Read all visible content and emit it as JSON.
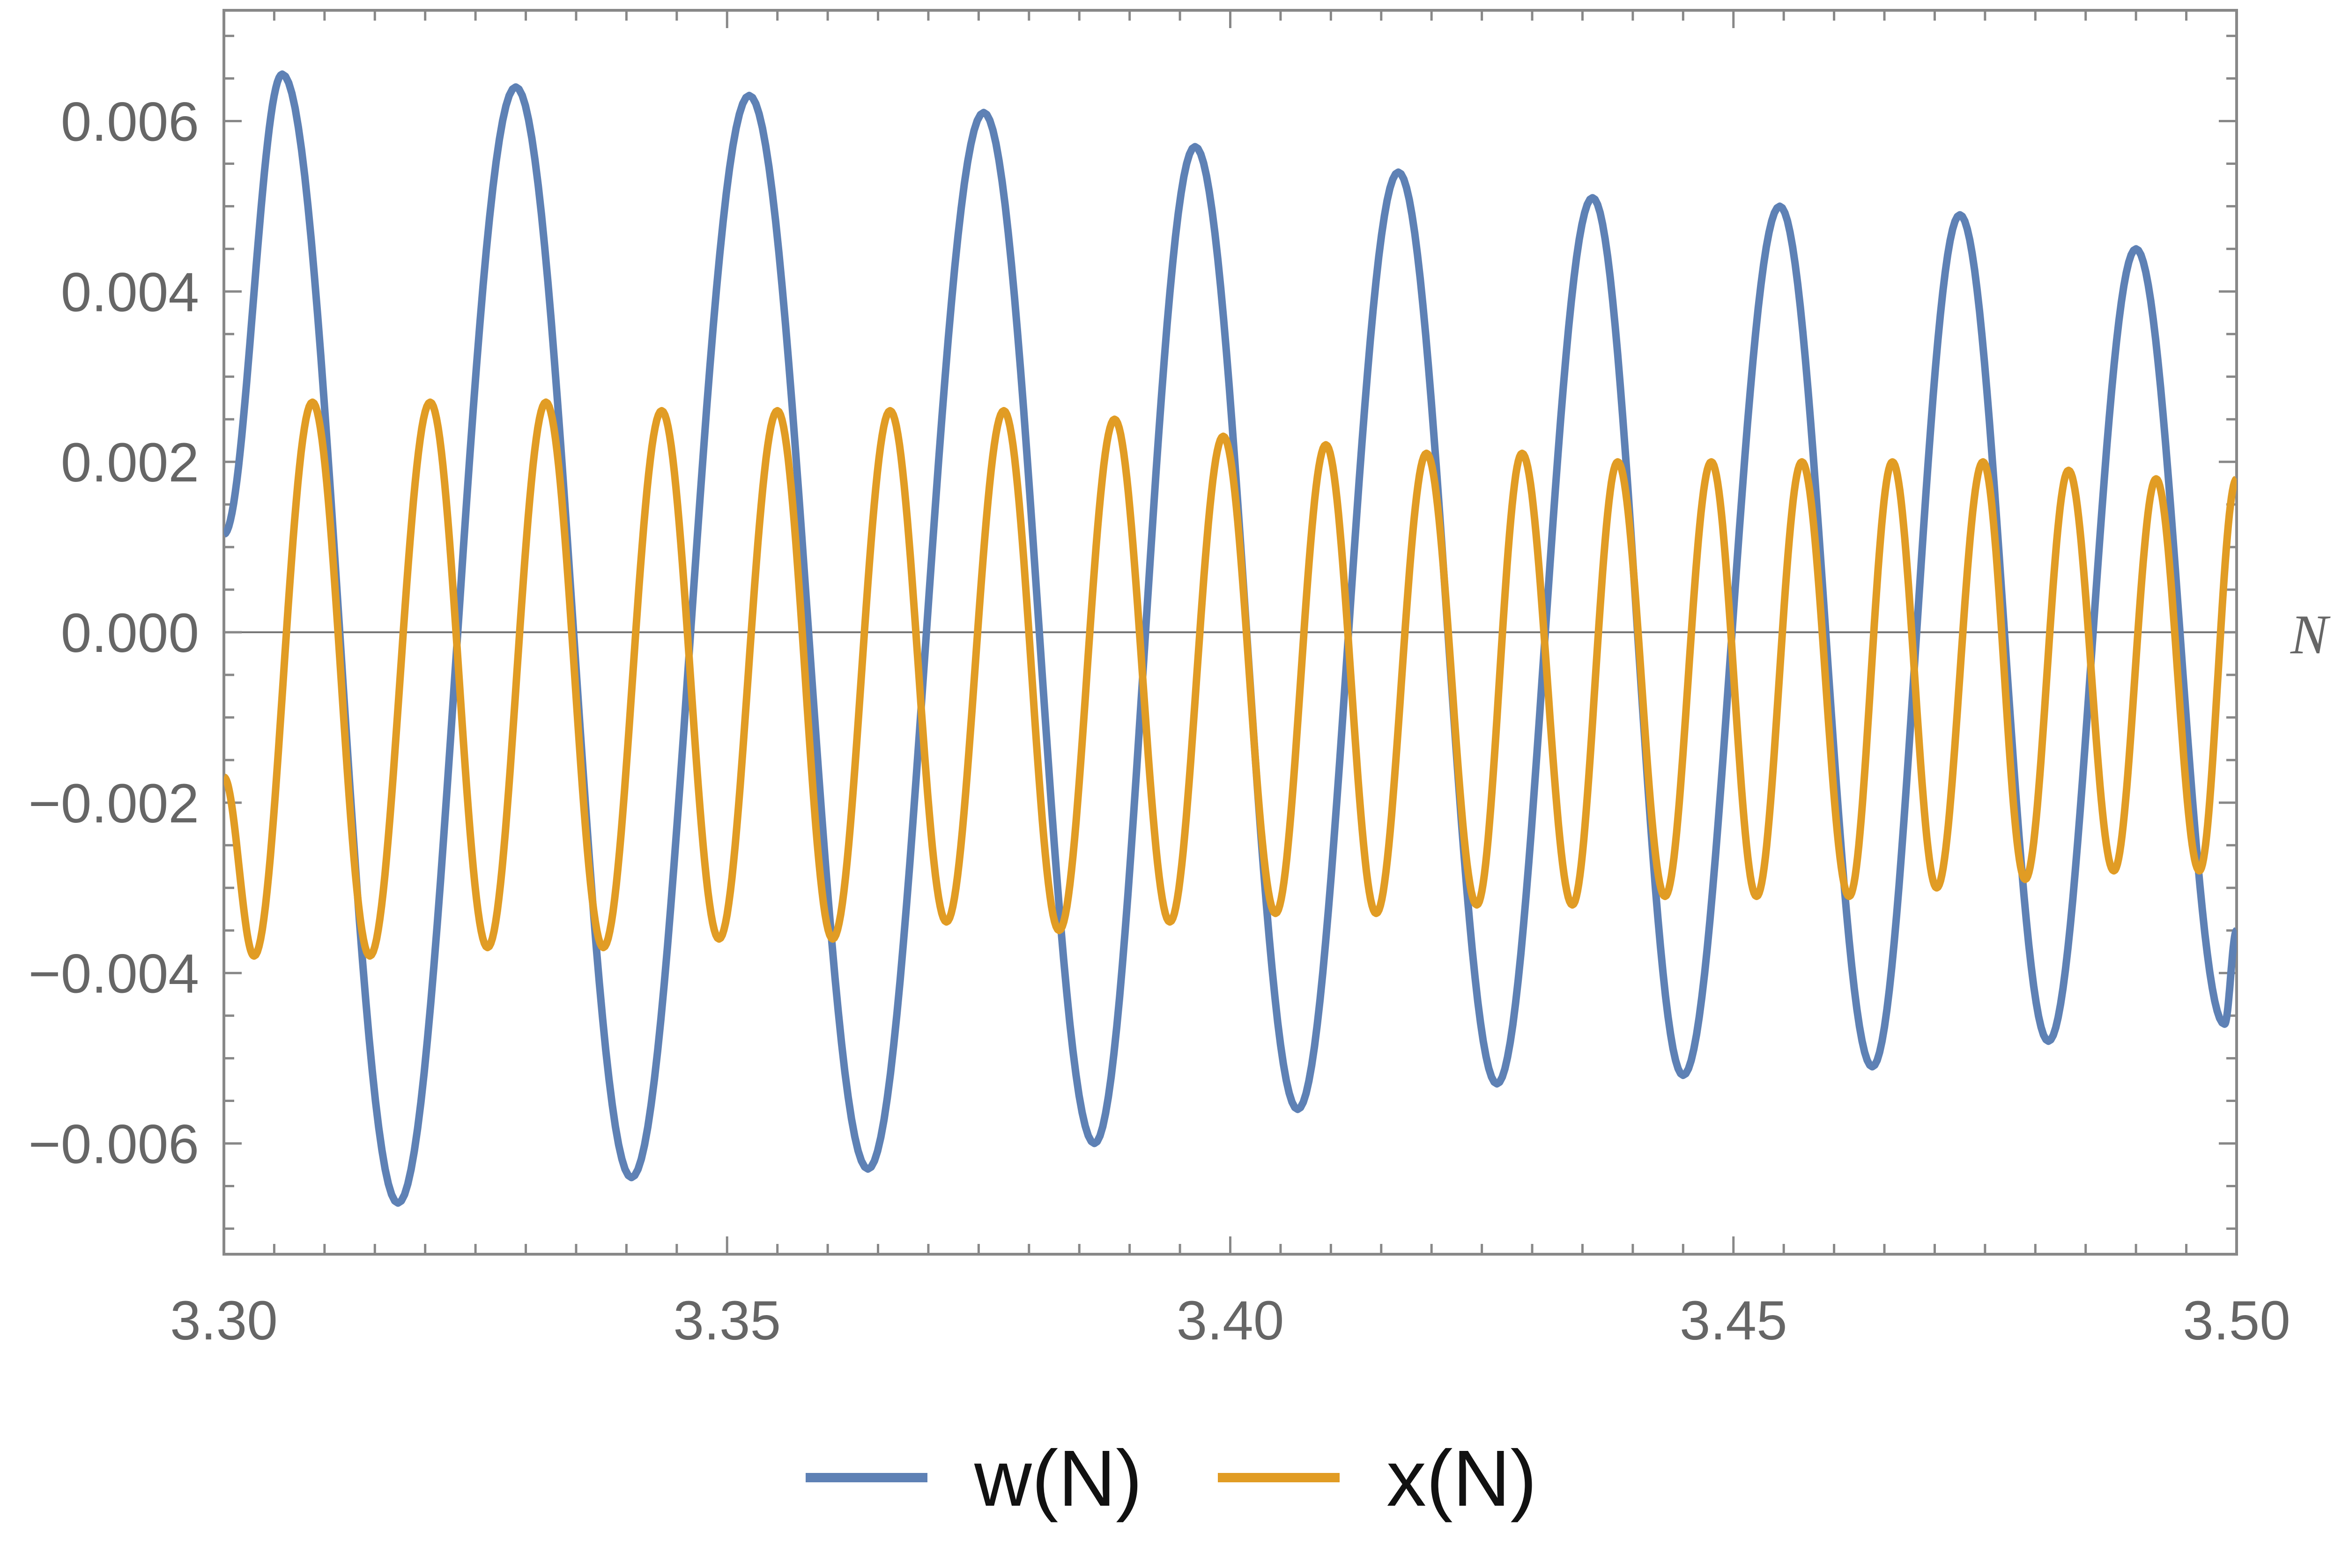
{
  "chart_data": {
    "type": "line",
    "title": "",
    "xlabel": "N",
    "ylabel": "",
    "xlim": [
      3.3,
      3.5
    ],
    "ylim": [
      -0.0073,
      0.0073
    ],
    "x_ticks": [
      "3.30",
      "3.35",
      "3.40",
      "3.45",
      "3.50"
    ],
    "y_ticks": [
      "0.006",
      "0.004",
      "0.002",
      "0.000",
      "−0.002",
      "−0.004",
      "−0.006"
    ],
    "grid": false,
    "frame": true,
    "legend_position": "bottom",
    "series": [
      {
        "name": "w(N)",
        "color": "#5e81b5",
        "extrema": [
          [
            3.3,
            0.00115
          ],
          [
            3.3058,
            0.00655
          ],
          [
            3.3173,
            -0.0067
          ],
          [
            3.329,
            0.0064
          ],
          [
            3.3405,
            -0.0064
          ],
          [
            3.3522,
            0.0063
          ],
          [
            3.364,
            -0.0063
          ],
          [
            3.3755,
            0.0061
          ],
          [
            3.3865,
            -0.006
          ],
          [
            3.3965,
            0.0057
          ],
          [
            3.4067,
            -0.0056
          ],
          [
            3.4167,
            0.0054
          ],
          [
            3.4265,
            -0.0053
          ],
          [
            3.436,
            0.0051
          ],
          [
            3.445,
            -0.0052
          ],
          [
            3.4546,
            0.005
          ],
          [
            3.4638,
            -0.0051
          ],
          [
            3.4725,
            0.0049
          ],
          [
            3.4813,
            -0.0048
          ],
          [
            3.49,
            0.0045
          ],
          [
            3.4988,
            -0.0046
          ],
          [
            3.5,
            -0.0035
          ]
        ]
      },
      {
        "name": "x(N)",
        "color": "#e19c24",
        "extrema": [
          [
            3.3,
            -0.0017
          ],
          [
            3.303,
            -0.0038
          ],
          [
            3.3088,
            0.0027
          ],
          [
            3.3145,
            -0.0038
          ],
          [
            3.3205,
            0.0027
          ],
          [
            3.3262,
            -0.0037
          ],
          [
            3.332,
            0.0027
          ],
          [
            3.3377,
            -0.0037
          ],
          [
            3.3435,
            0.0026
          ],
          [
            3.3492,
            -0.0036
          ],
          [
            3.355,
            0.0026
          ],
          [
            3.3605,
            -0.0036
          ],
          [
            3.3662,
            0.0026
          ],
          [
            3.3718,
            -0.0034
          ],
          [
            3.3775,
            0.0026
          ],
          [
            3.383,
            -0.0035
          ],
          [
            3.3885,
            0.0025
          ],
          [
            3.394,
            -0.0034
          ],
          [
            3.3993,
            0.0023
          ],
          [
            3.4045,
            -0.0033
          ],
          [
            3.4095,
            0.0022
          ],
          [
            3.4145,
            -0.0033
          ],
          [
            3.4195,
            0.0021
          ],
          [
            3.4245,
            -0.0032
          ],
          [
            3.429,
            0.0021
          ],
          [
            3.434,
            -0.0032
          ],
          [
            3.4385,
            0.002
          ],
          [
            3.4432,
            -0.0031
          ],
          [
            3.4478,
            0.002
          ],
          [
            3.4523,
            -0.0031
          ],
          [
            3.4568,
            0.002
          ],
          [
            3.4615,
            -0.0031
          ],
          [
            3.4658,
            0.002
          ],
          [
            3.4702,
            -0.003
          ],
          [
            3.4748,
            0.002
          ],
          [
            3.479,
            -0.0029
          ],
          [
            3.4833,
            0.0019
          ],
          [
            3.4878,
            -0.0028
          ],
          [
            3.492,
            0.0018
          ],
          [
            3.4963,
            -0.0028
          ],
          [
            3.5,
            0.0018
          ]
        ]
      }
    ]
  }
}
